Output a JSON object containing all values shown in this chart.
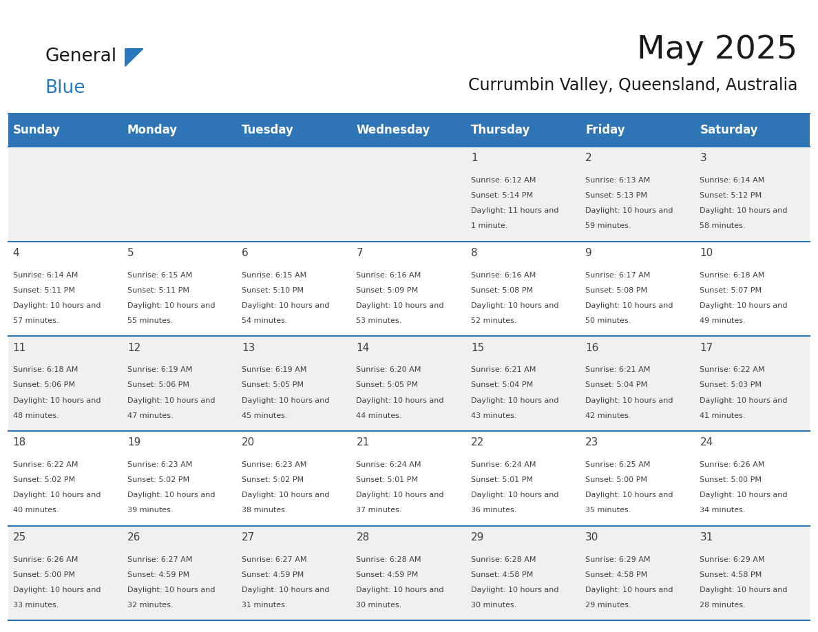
{
  "title": "May 2025",
  "subtitle": "Currumbin Valley, Queensland, Australia",
  "header_bg_color": "#2E75B6",
  "header_text_color": "#FFFFFF",
  "day_names": [
    "Sunday",
    "Monday",
    "Tuesday",
    "Wednesday",
    "Thursday",
    "Friday",
    "Saturday"
  ],
  "bg_color": "#FFFFFF",
  "cell_bg_even": "#F0F0F0",
  "cell_bg_odd": "#FFFFFF",
  "row_line_color": "#2E75B6",
  "text_color": "#404040",
  "logo_black": "#1a1a1a",
  "logo_blue": "#2878BE",
  "title_fontsize": 34,
  "subtitle_fontsize": 17,
  "header_cell_fontsize": 12,
  "day_num_fontsize": 11,
  "cell_text_fontsize": 8.0,
  "calendar_data": [
    [
      {
        "day": "",
        "sunrise": "",
        "sunset": "",
        "daylight": ""
      },
      {
        "day": "",
        "sunrise": "",
        "sunset": "",
        "daylight": ""
      },
      {
        "day": "",
        "sunrise": "",
        "sunset": "",
        "daylight": ""
      },
      {
        "day": "",
        "sunrise": "",
        "sunset": "",
        "daylight": ""
      },
      {
        "day": "1",
        "sunrise": "6:12 AM",
        "sunset": "5:14 PM",
        "daylight": "11 hours and 1 minute."
      },
      {
        "day": "2",
        "sunrise": "6:13 AM",
        "sunset": "5:13 PM",
        "daylight": "10 hours and 59 minutes."
      },
      {
        "day": "3",
        "sunrise": "6:14 AM",
        "sunset": "5:12 PM",
        "daylight": "10 hours and 58 minutes."
      }
    ],
    [
      {
        "day": "4",
        "sunrise": "6:14 AM",
        "sunset": "5:11 PM",
        "daylight": "10 hours and 57 minutes."
      },
      {
        "day": "5",
        "sunrise": "6:15 AM",
        "sunset": "5:11 PM",
        "daylight": "10 hours and 55 minutes."
      },
      {
        "day": "6",
        "sunrise": "6:15 AM",
        "sunset": "5:10 PM",
        "daylight": "10 hours and 54 minutes."
      },
      {
        "day": "7",
        "sunrise": "6:16 AM",
        "sunset": "5:09 PM",
        "daylight": "10 hours and 53 minutes."
      },
      {
        "day": "8",
        "sunrise": "6:16 AM",
        "sunset": "5:08 PM",
        "daylight": "10 hours and 52 minutes."
      },
      {
        "day": "9",
        "sunrise": "6:17 AM",
        "sunset": "5:08 PM",
        "daylight": "10 hours and 50 minutes."
      },
      {
        "day": "10",
        "sunrise": "6:18 AM",
        "sunset": "5:07 PM",
        "daylight": "10 hours and 49 minutes."
      }
    ],
    [
      {
        "day": "11",
        "sunrise": "6:18 AM",
        "sunset": "5:06 PM",
        "daylight": "10 hours and 48 minutes."
      },
      {
        "day": "12",
        "sunrise": "6:19 AM",
        "sunset": "5:06 PM",
        "daylight": "10 hours and 47 minutes."
      },
      {
        "day": "13",
        "sunrise": "6:19 AM",
        "sunset": "5:05 PM",
        "daylight": "10 hours and 45 minutes."
      },
      {
        "day": "14",
        "sunrise": "6:20 AM",
        "sunset": "5:05 PM",
        "daylight": "10 hours and 44 minutes."
      },
      {
        "day": "15",
        "sunrise": "6:21 AM",
        "sunset": "5:04 PM",
        "daylight": "10 hours and 43 minutes."
      },
      {
        "day": "16",
        "sunrise": "6:21 AM",
        "sunset": "5:04 PM",
        "daylight": "10 hours and 42 minutes."
      },
      {
        "day": "17",
        "sunrise": "6:22 AM",
        "sunset": "5:03 PM",
        "daylight": "10 hours and 41 minutes."
      }
    ],
    [
      {
        "day": "18",
        "sunrise": "6:22 AM",
        "sunset": "5:02 PM",
        "daylight": "10 hours and 40 minutes."
      },
      {
        "day": "19",
        "sunrise": "6:23 AM",
        "sunset": "5:02 PM",
        "daylight": "10 hours and 39 minutes."
      },
      {
        "day": "20",
        "sunrise": "6:23 AM",
        "sunset": "5:02 PM",
        "daylight": "10 hours and 38 minutes."
      },
      {
        "day": "21",
        "sunrise": "6:24 AM",
        "sunset": "5:01 PM",
        "daylight": "10 hours and 37 minutes."
      },
      {
        "day": "22",
        "sunrise": "6:24 AM",
        "sunset": "5:01 PM",
        "daylight": "10 hours and 36 minutes."
      },
      {
        "day": "23",
        "sunrise": "6:25 AM",
        "sunset": "5:00 PM",
        "daylight": "10 hours and 35 minutes."
      },
      {
        "day": "24",
        "sunrise": "6:26 AM",
        "sunset": "5:00 PM",
        "daylight": "10 hours and 34 minutes."
      }
    ],
    [
      {
        "day": "25",
        "sunrise": "6:26 AM",
        "sunset": "5:00 PM",
        "daylight": "10 hours and 33 minutes."
      },
      {
        "day": "26",
        "sunrise": "6:27 AM",
        "sunset": "4:59 PM",
        "daylight": "10 hours and 32 minutes."
      },
      {
        "day": "27",
        "sunrise": "6:27 AM",
        "sunset": "4:59 PM",
        "daylight": "10 hours and 31 minutes."
      },
      {
        "day": "28",
        "sunrise": "6:28 AM",
        "sunset": "4:59 PM",
        "daylight": "10 hours and 30 minutes."
      },
      {
        "day": "29",
        "sunrise": "6:28 AM",
        "sunset": "4:58 PM",
        "daylight": "10 hours and 30 minutes."
      },
      {
        "day": "30",
        "sunrise": "6:29 AM",
        "sunset": "4:58 PM",
        "daylight": "10 hours and 29 minutes."
      },
      {
        "day": "31",
        "sunrise": "6:29 AM",
        "sunset": "4:58 PM",
        "daylight": "10 hours and 28 minutes."
      }
    ]
  ]
}
